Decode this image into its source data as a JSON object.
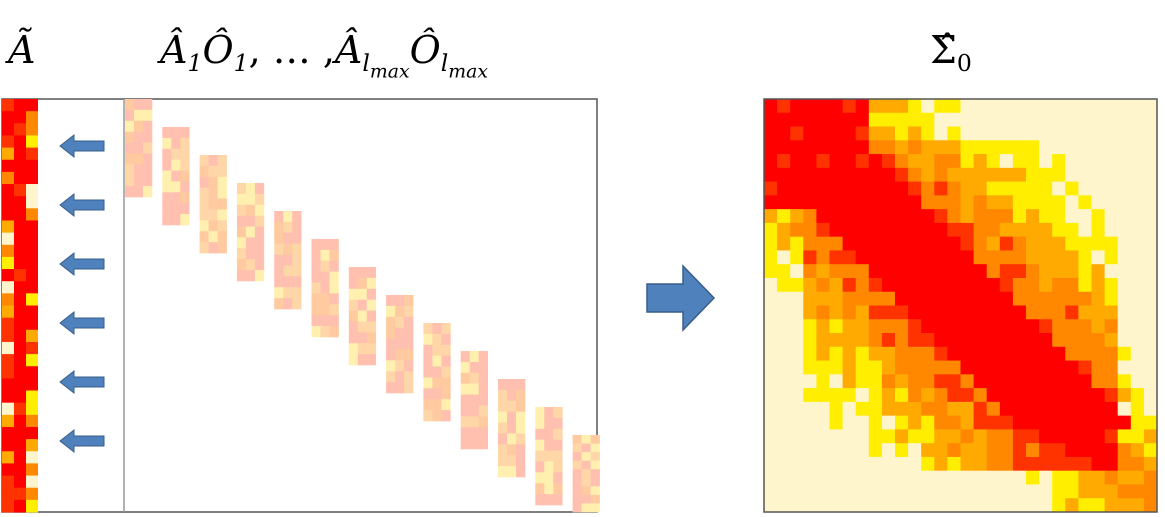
{
  "labels": {
    "a_tilde": "Ã",
    "a_hat": "Â",
    "o_hat": "Ô",
    "sub_1": "1",
    "ellipsis_sep": ", … ,",
    "sub_l": "l",
    "sub_max": "max",
    "sigma_hat": "Σ̂",
    "sub_0": "0"
  },
  "colors": {
    "red": "#ff0000",
    "orange_red": "#ff3300",
    "orange": "#ff8800",
    "amber": "#ffaa00",
    "yellow": "#ffee00",
    "pale": "#fff5cc",
    "faded_pink": "#ffc0b0",
    "faded_peach": "#ffd6a8",
    "faded_yellow": "#fff0b0",
    "arrow_blue": "#4f81bd",
    "arrow_blue_dark": "#385d8a",
    "frame": "#555555"
  },
  "diagram": {
    "left_arrow_count": 6,
    "block_count": 13,
    "big_arrow_icon": "right-arrow-icon",
    "small_arrow_icon": "left-arrow-icon"
  }
}
